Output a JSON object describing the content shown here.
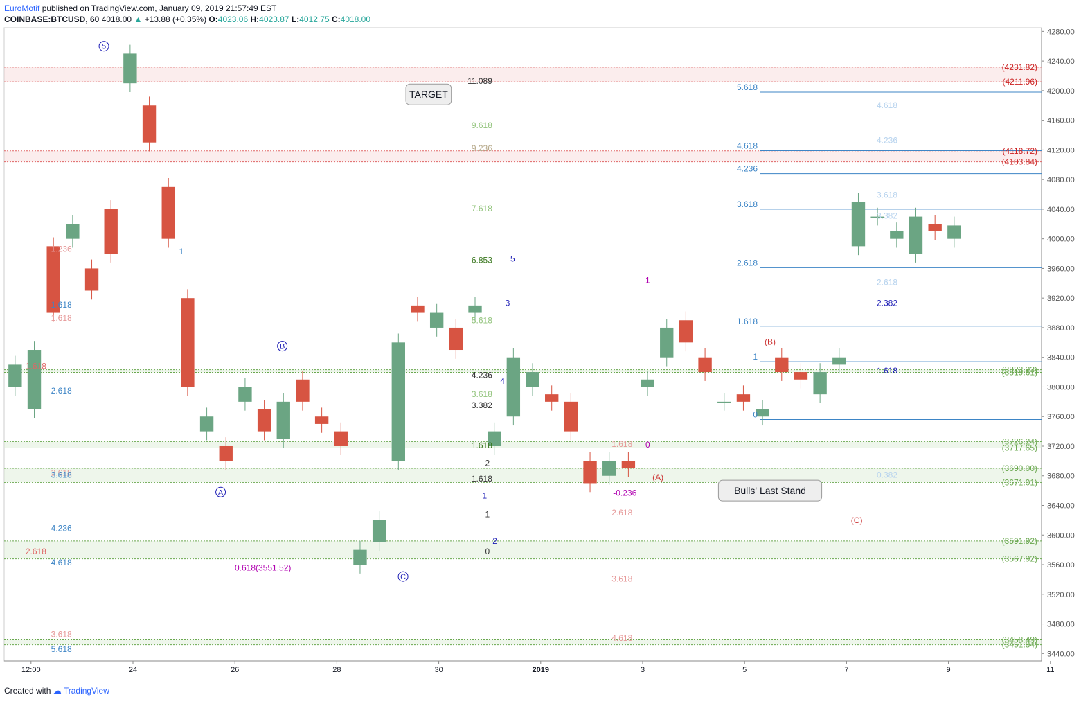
{
  "header": {
    "author": "EuroMotif",
    "published": "published on TradingView.com, January 09, 2019 21:57:49 EST",
    "symbol": "COINBASE:BTCUSD, 60",
    "last": "4018.00",
    "change": "+13.88 (+0.35%)",
    "o_label": "O:",
    "o": "4023.06",
    "h_label": "H:",
    "h": "4023.87",
    "l_label": "L:",
    "l": "4012.75",
    "c_label": "C:",
    "c": "4018.00"
  },
  "footer": {
    "created": "Created with",
    "brand": "TradingView"
  },
  "chart_data": {
    "type": "candlestick",
    "ylim": [
      3430,
      4285
    ],
    "y_ticks": [
      "4280.00",
      "4240.00",
      "4200.00",
      "4160.00",
      "4120.00",
      "4080.00",
      "4040.00",
      "4000.00",
      "3960.00",
      "3920.00",
      "3880.00",
      "3840.00",
      "3800.00",
      "3760.00",
      "3720.00",
      "3680.00",
      "3640.00",
      "3600.00",
      "3560.00",
      "3520.00",
      "3480.00",
      "3440.00"
    ],
    "x_ticks": [
      "12:00",
      "24",
      "26",
      "28",
      "30",
      "2019",
      "3",
      "5",
      "7",
      "9",
      "11"
    ],
    "colors": {
      "up": "#6ba583",
      "down": "#d75442",
      "blue": "#3d85c6",
      "red": "#d32f2f",
      "green": "#6aa84f",
      "wave": "#9b9be8"
    },
    "price_path": [
      [
        3800,
        3830
      ],
      [
        3770,
        3850
      ],
      [
        3990,
        3900
      ],
      [
        4000,
        4020
      ],
      [
        3960,
        3930
      ],
      [
        4040,
        3980
      ],
      [
        4210,
        4250
      ],
      [
        4180,
        4130
      ],
      [
        4070,
        4000
      ],
      [
        3920,
        3800
      ],
      [
        3740,
        3760
      ],
      [
        3720,
        3700
      ],
      [
        3780,
        3800
      ],
      [
        3770,
        3740
      ],
      [
        3730,
        3780
      ],
      [
        3810,
        3780
      ],
      [
        3760,
        3750
      ],
      [
        3740,
        3720
      ],
      [
        3560,
        3580
      ],
      [
        3590,
        3620
      ],
      [
        3700,
        3860
      ],
      [
        3910,
        3900
      ],
      [
        3880,
        3900
      ],
      [
        3880,
        3850
      ],
      [
        3900,
        3910
      ],
      [
        3720,
        3740
      ],
      [
        3760,
        3840
      ],
      [
        3800,
        3820
      ],
      [
        3790,
        3780
      ],
      [
        3780,
        3740
      ],
      [
        3700,
        3670
      ],
      [
        3680,
        3700
      ],
      [
        3700,
        3690
      ],
      [
        3800,
        3810
      ],
      [
        3840,
        3880
      ],
      [
        3890,
        3860
      ],
      [
        3840,
        3820
      ],
      [
        3780,
        3780
      ],
      [
        3790,
        3780
      ],
      [
        3760,
        3770
      ],
      [
        3840,
        3820
      ],
      [
        3820,
        3810
      ],
      [
        3790,
        3820
      ],
      [
        3830,
        3840
      ],
      [
        3990,
        4050
      ],
      [
        4030,
        4030
      ],
      [
        4000,
        4010
      ],
      [
        3980,
        4030
      ],
      [
        4020,
        4010
      ],
      [
        4000,
        4018
      ]
    ],
    "levels": [
      {
        "price": 4231.82,
        "label": "(4231.82)",
        "color": "red"
      },
      {
        "price": 4211.96,
        "label": "(4211.96)",
        "color": "red"
      },
      {
        "price": 4118.72,
        "label": "(4118.72)",
        "color": "red"
      },
      {
        "price": 4103.84,
        "label": "(4103.84)",
        "color": "red"
      },
      {
        "price": 3823.23,
        "label": "(3823.23)",
        "color": "green"
      },
      {
        "price": 3819.61,
        "label": "(3819.61)",
        "color": "green"
      },
      {
        "price": 3726.24,
        "label": "(3726.24)",
        "color": "green"
      },
      {
        "price": 3717.65,
        "label": "(3717.65)",
        "color": "green"
      },
      {
        "price": 3690.0,
        "label": "(3690.00)",
        "color": "green"
      },
      {
        "price": 3671.01,
        "label": "(3671.01)",
        "color": "green"
      },
      {
        "price": 3591.92,
        "label": "(3591.92)",
        "color": "green"
      },
      {
        "price": 3567.92,
        "label": "(3567.92)",
        "color": "green"
      },
      {
        "price": 3458.49,
        "label": "(3458.49)",
        "color": "green"
      },
      {
        "price": 3451.84,
        "label": "(3451.84)",
        "color": "green"
      }
    ],
    "fib_right": [
      {
        "label": "5.618",
        "price": 4198
      },
      {
        "label": "4.618",
        "price": 4119
      },
      {
        "label": "4.236",
        "price": 4088
      },
      {
        "label": "3.618",
        "price": 4040
      },
      {
        "label": "2.618",
        "price": 3961
      },
      {
        "label": "1.618",
        "price": 3882
      },
      {
        "label": "1",
        "price": 3834
      },
      {
        "label": "0",
        "price": 3756
      }
    ],
    "fib_labels": [
      {
        "t": "11.089",
        "c": "#333333",
        "p": 4213,
        "d": 9.55
      },
      {
        "t": "9.618",
        "c": "#93c47d",
        "p": 4153,
        "d": 9.55
      },
      {
        "t": "9.236",
        "c": "#b6a98a",
        "p": 4122,
        "d": 9.55
      },
      {
        "t": "7.618",
        "c": "#93c47d",
        "p": 4041,
        "d": 9.55
      },
      {
        "t": "6.853",
        "c": "#38761d",
        "p": 3971,
        "d": 9.55
      },
      {
        "t": "5.618",
        "c": "#93c47d",
        "p": 3890,
        "d": 9.55
      },
      {
        "t": "4.236",
        "c": "#333333",
        "p": 3816,
        "d": 9.55
      },
      {
        "t": "3.618",
        "c": "#93c47d",
        "p": 3790,
        "d": 9.55
      },
      {
        "t": "3.382",
        "c": "#333333",
        "p": 3775,
        "d": 9.55
      },
      {
        "t": "1.618",
        "c": "#38761d",
        "p": 3721,
        "d": 9.55
      },
      {
        "t": "2",
        "c": "#333333",
        "p": 3697,
        "d": 9.5
      },
      {
        "t": "1.618",
        "c": "#333333",
        "p": 3676,
        "d": 9.55
      },
      {
        "t": "1",
        "c": "#333333",
        "p": 3628,
        "d": 9.5
      },
      {
        "t": "0",
        "c": "#333333",
        "p": 3578,
        "d": 9.5
      },
      {
        "t": "4.618",
        "c": "#b7d3ee",
        "p": 4180,
        "d": 17.5
      },
      {
        "t": "4.236",
        "c": "#b7d3ee",
        "p": 4133,
        "d": 17.5
      },
      {
        "t": "3.618",
        "c": "#b7d3ee",
        "p": 4059,
        "d": 17.5
      },
      {
        "t": "3.382",
        "c": "#b7d3ee",
        "p": 4031,
        "d": 17.5
      },
      {
        "t": "2.618",
        "c": "#b7d3ee",
        "p": 3941,
        "d": 17.5
      },
      {
        "t": "2.382",
        "c": "#1c1cb5",
        "p": 3913,
        "d": 17.5
      },
      {
        "t": "1.618",
        "c": "#1c1cb5",
        "p": 3822,
        "d": 17.5
      },
      {
        "t": "0.382",
        "c": "#b7d3ee",
        "p": 3681,
        "d": 17.5
      },
      {
        "t": "1.236",
        "c": "#e69999",
        "p": 3986,
        "d": 1.3
      },
      {
        "t": "1.618",
        "c": "#3d85c6",
        "p": 3911,
        "d": 1.3
      },
      {
        "t": "1.618",
        "c": "#e69999",
        "p": 3893,
        "d": 1.3
      },
      {
        "t": "1.618",
        "c": "#e06666",
        "p": 3828,
        "d": 0.8
      },
      {
        "t": "2.618",
        "c": "#3d85c6",
        "p": 3795,
        "d": 1.3
      },
      {
        "t": "2.618",
        "c": "#e69999",
        "p": 3684,
        "d": 1.3
      },
      {
        "t": "3.618",
        "c": "#3d85c6",
        "p": 3681,
        "d": 1.3
      },
      {
        "t": "4.236",
        "c": "#3d85c6",
        "p": 3609,
        "d": 1.3
      },
      {
        "t": "2.618",
        "c": "#e06666",
        "p": 3578,
        "d": 0.8
      },
      {
        "t": "4.618",
        "c": "#3d85c6",
        "p": 3563,
        "d": 1.3
      },
      {
        "t": "3.618",
        "c": "#e69999",
        "p": 3466,
        "d": 1.3
      },
      {
        "t": "5.618",
        "c": "#3d85c6",
        "p": 3446,
        "d": 1.3
      },
      {
        "t": "1.618",
        "c": "#e69999",
        "p": 3723,
        "d": 12.3
      },
      {
        "t": "2.618",
        "c": "#e69999",
        "p": 3630,
        "d": 12.3
      },
      {
        "t": "3.618",
        "c": "#e69999",
        "p": 3541,
        "d": 12.3
      },
      {
        "t": "4.618",
        "c": "#e69999",
        "p": 3461,
        "d": 12.3
      },
      {
        "t": "2.382",
        "c": "#f2bcbc",
        "p": 3792,
        "d": 27.4
      },
      {
        "t": "2.618",
        "c": "#f2bcbc",
        "p": 3775,
        "d": 27.4
      },
      {
        "t": "3.618",
        "c": "#f2bcbc",
        "p": 3688,
        "d": 27.4
      },
      {
        "t": "4.618",
        "c": "#f2bcbc",
        "p": 3621,
        "d": 27.4
      },
      {
        "t": "5.618",
        "c": "#f2bcbc",
        "p": 3555,
        "d": 27.4
      }
    ],
    "waves": [
      {
        "t": "5",
        "c": "#1c1cb5",
        "p": 4260,
        "d": 1.93,
        "circle": true
      },
      {
        "t": "B",
        "c": "#1c1cb5",
        "p": 3855,
        "d": 5.43,
        "circle": true
      },
      {
        "t": "A",
        "c": "#1c1cb5",
        "p": 3658,
        "d": 4.22,
        "circle": true
      },
      {
        "t": "C",
        "c": "#1c1cb5",
        "p": 3544,
        "d": 7.8,
        "circle": true
      },
      {
        "t": "5",
        "c": "#1c1cb5",
        "p": 3973,
        "d": 9.95
      },
      {
        "t": "3",
        "c": "#1c1cb5",
        "p": 3913,
        "d": 9.85
      },
      {
        "t": "4",
        "c": "#1c1cb5",
        "p": 3808,
        "d": 9.75
      },
      {
        "t": "1",
        "c": "#1c1cb5",
        "p": 3653,
        "d": 9.4
      },
      {
        "t": "2",
        "c": "#1c1cb5",
        "p": 3592,
        "d": 9.6
      },
      {
        "t": "1",
        "c": "#3d85c6",
        "p": 3983,
        "d": 3.45
      },
      {
        "t": "1",
        "c": "#b000b0",
        "p": 3944,
        "d": 12.6
      },
      {
        "t": "0",
        "c": "#b000b0",
        "p": 3722,
        "d": 12.6
      },
      {
        "t": "-0.236",
        "c": "#b000b0",
        "p": 3657,
        "d": 12.15
      },
      {
        "t": "0.618(3551.52)",
        "c": "#b000b0",
        "p": 3556,
        "d": 5.05
      },
      {
        "t": "(A)",
        "c": "#cc3333",
        "p": 3678,
        "d": 12.8
      },
      {
        "t": "(B)",
        "c": "#cc3333",
        "p": 3861,
        "d": 15.0
      },
      {
        "t": "(C)",
        "c": "#cc3333",
        "p": 3620,
        "d": 16.7
      }
    ],
    "annotations": [
      {
        "text": "TARGET",
        "p": 4195,
        "d": 8.3
      },
      {
        "text": "Bulls' Last Stand",
        "p": 3660,
        "d": 15.0
      }
    ]
  }
}
